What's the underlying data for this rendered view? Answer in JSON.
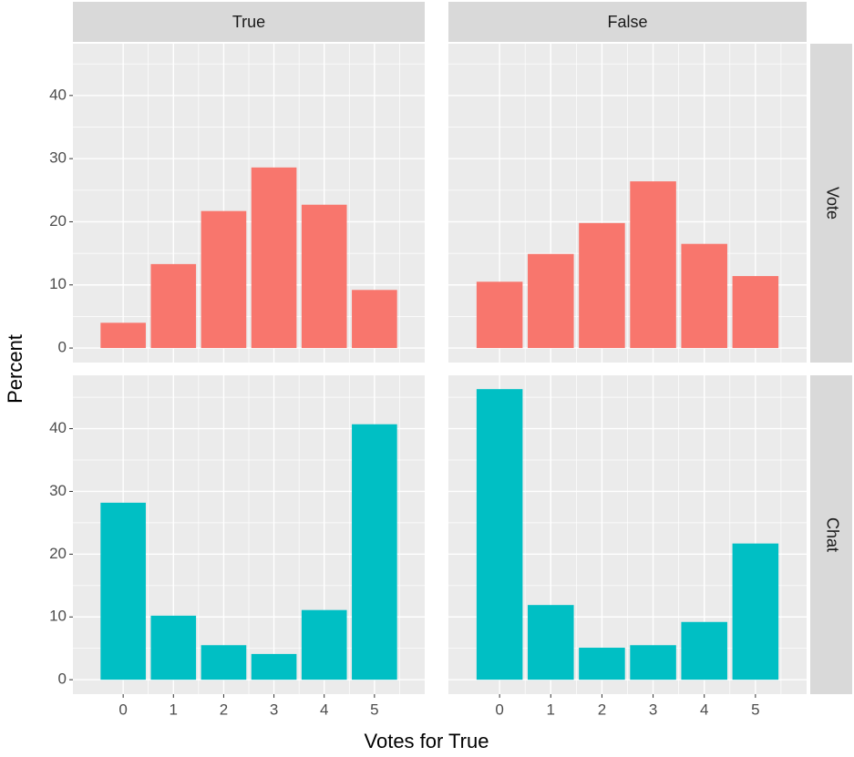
{
  "chart_data": {
    "type": "bar",
    "x_label": "Votes for True",
    "y_label": "Percent",
    "columns": [
      "True",
      "False"
    ],
    "x": [
      0,
      1,
      2,
      3,
      4,
      5
    ],
    "xlim": [
      -1,
      6
    ],
    "xticks": [
      0,
      1,
      2,
      3,
      4,
      5
    ],
    "grid": true,
    "rows": [
      {
        "label": "Vote",
        "color": "#f8766d",
        "ylim": [
          -2.3,
          48.2
        ],
        "yticks": [
          0,
          10,
          20,
          30,
          40
        ],
        "values": [
          [
            4.0,
            13.3,
            21.7,
            28.6,
            22.7,
            9.2
          ],
          [
            10.5,
            14.9,
            19.8,
            26.4,
            16.5,
            11.4
          ]
        ]
      },
      {
        "label": "Chat",
        "color": "#00bfc4",
        "ylim": [
          -2.3,
          48.5
        ],
        "yticks": [
          0,
          10,
          20,
          30,
          40
        ],
        "values": [
          [
            28.2,
            10.2,
            5.5,
            4.1,
            11.1,
            40.7
          ],
          [
            46.3,
            11.9,
            5.1,
            5.5,
            9.2,
            21.7
          ]
        ]
      }
    ]
  }
}
